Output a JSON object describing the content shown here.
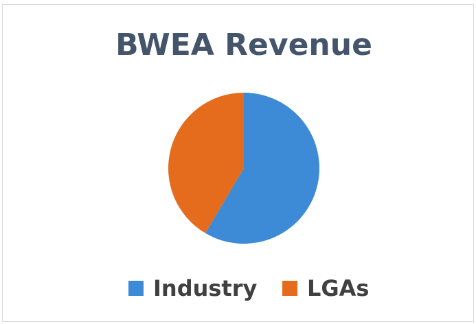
{
  "chart_data": {
    "type": "pie",
    "title": "BWEA Revenue",
    "categories": [
      "Industry",
      "LGAs"
    ],
    "values": [
      58.5,
      41.5
    ],
    "colors": [
      "#3d8ad6",
      "#e46c1c"
    ],
    "legend": "bottom"
  }
}
